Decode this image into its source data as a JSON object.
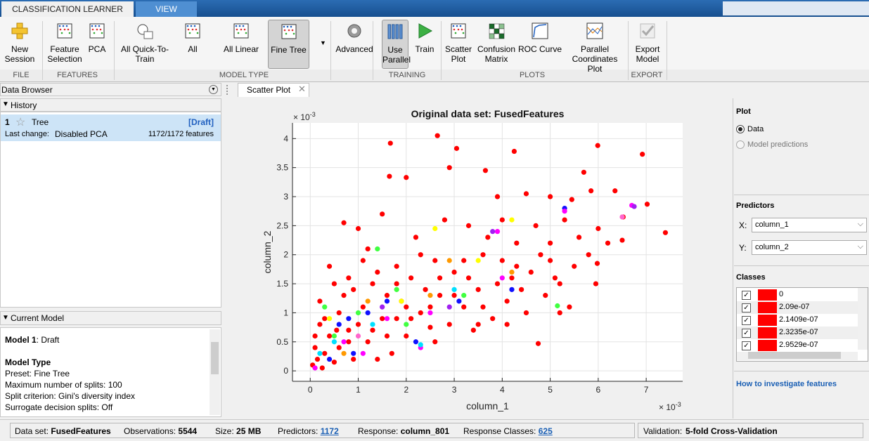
{
  "tabs": [
    "CLASSIFICATION LEARNER",
    "VIEW"
  ],
  "ribbon": {
    "buttons": [
      {
        "label": "New Session"
      },
      {
        "label": "Feature Selection"
      },
      {
        "label": "PCA"
      },
      {
        "label": "All Quick-To-Train"
      },
      {
        "label": "All"
      },
      {
        "label": "All Linear"
      },
      {
        "label": "Fine Tree",
        "selected": true
      },
      {
        "label": "Advanced"
      },
      {
        "label": "Use Parallel",
        "selected": true
      },
      {
        "label": "Train"
      },
      {
        "label": "Scatter Plot"
      },
      {
        "label": "Confusion Matrix"
      },
      {
        "label": "ROC Curve"
      },
      {
        "label": "Parallel Coordinates Plot"
      },
      {
        "label": "Export Model"
      }
    ],
    "groups": [
      "FILE",
      "FEATURES",
      "MODEL TYPE",
      "TRAINING",
      "PLOTS",
      "EXPORT"
    ]
  },
  "data_browser": {
    "title": "Data Browser",
    "history_title": "History",
    "history": [
      {
        "number": "1",
        "name": "Tree",
        "status": "[Draft]",
        "change_label": "Last change:",
        "change": "Disabled PCA",
        "features": "1172/1172 features"
      }
    ],
    "current_model_title": "Current Model",
    "current_model": {
      "model": "Model 1",
      "model_status": ": Draft",
      "section": "Model Type",
      "lines": [
        "Preset: Fine Tree",
        "Maximum number of splits: 100",
        "Split criterion: Gini's diversity index",
        "Surrogate decision splits: Off"
      ]
    }
  },
  "document_tab": "Scatter Plot",
  "chart_data": {
    "type": "scatter",
    "title": "Original data set: FusedFeatures",
    "x_label": "column_1",
    "y_label": "column_2",
    "x_multiplier": {
      "base": "× 10",
      "exponent": "-3"
    },
    "y_multiplier": {
      "base": "× 10",
      "exponent": "-3"
    },
    "xlim": [
      -0.37,
      7.76
    ],
    "ylim": [
      -0.18,
      4.27
    ],
    "xticks": [
      0,
      1,
      2,
      3,
      4,
      5,
      6,
      7
    ],
    "yticks": [
      0,
      0.5,
      1,
      1.5,
      2,
      2.5,
      3,
      3.5,
      4
    ],
    "grid": true,
    "series": [
      {
        "color": "#ff0000",
        "x": [
          2.65,
          1.67,
          3.05,
          4.25,
          5.99,
          6.92,
          2.9,
          3.65,
          1.65,
          2.0,
          5.7,
          5.85,
          7.4,
          7.02,
          6.35,
          6.52,
          5.45,
          4.5,
          5.0,
          3.9,
          1.5,
          0.7,
          1.0,
          6.0,
          6.5,
          5.95,
          5.98,
          4.75,
          2.5,
          3.4,
          1.2,
          2.2,
          2.8,
          3.3,
          4.0,
          4.7,
          5.3,
          5.6,
          6.2,
          5.0,
          4.3,
          3.6,
          2.6,
          1.8,
          0.4,
          0.5,
          0.8,
          1.3,
          2.1,
          3.0,
          4.0,
          4.6,
          5.5,
          5.2,
          4.4,
          3.5,
          2.7,
          1.9,
          1.1,
          0.6,
          0.2,
          0.1,
          0.05,
          0.3,
          0.8,
          1.5,
          2.3,
          3.2,
          4.1,
          4.9,
          5.4,
          3.8,
          2.9,
          2.0,
          1.2,
          0.6,
          0.9,
          1.7,
          0.2,
          0.4,
          1.0,
          1.6,
          2.4,
          3.3,
          4.2,
          5.0,
          5.8,
          3.7,
          2.3,
          1.4,
          0.7,
          0.15,
          0.5,
          1.4,
          4.1,
          3.0,
          2.1,
          0.9,
          1.8,
          2.5,
          3.6,
          4.5,
          5.1,
          4.8,
          3.2,
          2.0,
          0.3,
          1.1,
          0.1,
          2.7,
          3.9,
          4.3,
          0.8,
          1.3,
          1.8,
          2.6,
          3.5,
          5.2,
          0.25,
          0.55,
          1.6
        ],
        "values": [
          4.05,
          3.92,
          3.83,
          3.78,
          3.88,
          3.73,
          3.5,
          3.45,
          3.35,
          3.33,
          3.42,
          3.1,
          2.38,
          2.87,
          3.1,
          2.65,
          2.95,
          3.05,
          3.0,
          3.0,
          2.7,
          2.55,
          2.45,
          2.45,
          2.25,
          1.5,
          1.85,
          0.47,
          0.75,
          0.7,
          2.1,
          2.3,
          2.6,
          2.5,
          2.6,
          2.5,
          2.6,
          2.3,
          2.2,
          2.2,
          2.2,
          2.0,
          1.9,
          1.8,
          1.8,
          1.5,
          1.6,
          1.5,
          1.6,
          1.7,
          1.9,
          1.7,
          1.8,
          1.5,
          1.4,
          1.4,
          1.3,
          1.2,
          1.1,
          1.0,
          0.8,
          0.4,
          0.1,
          0.3,
          0.7,
          0.9,
          1.0,
          1.1,
          1.2,
          1.3,
          1.1,
          0.9,
          0.8,
          0.6,
          0.5,
          0.4,
          0.2,
          0.3,
          1.2,
          0.6,
          0.8,
          1.3,
          1.4,
          1.6,
          1.6,
          1.9,
          2.0,
          2.3,
          2.0,
          1.7,
          1.3,
          0.2,
          0.15,
          0.2,
          0.8,
          1.3,
          0.9,
          1.4,
          1.5,
          1.1,
          1.1,
          1.0,
          1.6,
          2.0,
          1.9,
          1.1,
          0.9,
          1.9,
          0.6,
          1.6,
          1.5,
          1.8,
          0.5,
          0.7,
          0.9,
          0.5,
          0.8,
          1.0,
          0.05,
          0.7,
          0.6
        ]
      },
      {
        "color": "#1010ff",
        "x": [
          0.4,
          0.8,
          1.2,
          2.2,
          3.1,
          1.6,
          0.6,
          5.3,
          0.9,
          4.2
        ],
        "values": [
          0.2,
          0.9,
          1.0,
          0.5,
          1.2,
          1.2,
          0.8,
          2.8,
          0.3,
          1.4
        ]
      },
      {
        "color": "#40ff40",
        "x": [
          1.4,
          1.0,
          0.5,
          2.0,
          3.2,
          0.3,
          5.15,
          1.8
        ],
        "values": [
          2.1,
          1.0,
          0.6,
          0.8,
          1.3,
          1.1,
          1.12,
          1.4
        ]
      },
      {
        "color": "#ff00ff",
        "x": [
          0.1,
          0.7,
          1.6,
          2.5,
          4.0,
          6.7,
          3.9,
          5.3,
          1.1,
          2.3
        ],
        "values": [
          0.05,
          0.5,
          0.9,
          1.0,
          1.6,
          2.85,
          2.4,
          2.75,
          0.3,
          0.4
        ]
      },
      {
        "color": "#a020f0",
        "x": [
          6.75,
          3.8,
          1.5,
          2.9
        ],
        "values": [
          2.83,
          2.4,
          1.1,
          1.1
        ]
      },
      {
        "color": "#ffff00",
        "x": [
          3.5,
          4.2,
          0.4,
          2.6,
          1.9
        ],
        "values": [
          1.9,
          2.6,
          0.9,
          2.45,
          1.2
        ]
      },
      {
        "color": "#00e0ff",
        "x": [
          0.5,
          2.3,
          3.0,
          0.2,
          1.3
        ],
        "values": [
          0.5,
          0.45,
          1.4,
          0.3,
          0.8
        ]
      },
      {
        "color": "#ff9900",
        "x": [
          1.2,
          2.5,
          0.7,
          4.2,
          2.9
        ],
        "values": [
          1.2,
          1.3,
          0.3,
          1.7,
          1.9
        ]
      },
      {
        "color": "#ff66cc",
        "x": [
          6.5,
          1.0
        ],
        "values": [
          2.65,
          0.6
        ]
      }
    ]
  },
  "side_panel": {
    "plot_title": "Plot",
    "plot_options": [
      "Data",
      "Model predictions"
    ],
    "predictors_title": "Predictors",
    "x_label": "X:",
    "x_value": "column_1",
    "y_label": "Y:",
    "y_value": "column_2",
    "classes_title": "Classes",
    "classes": [
      {
        "label": "0",
        "color": "#ff0000"
      },
      {
        "label": "2.09e-07",
        "color": "#ff0000"
      },
      {
        "label": "2.1409e-07",
        "color": "#ff0000"
      },
      {
        "label": "2.3235e-07",
        "color": "#ff0000"
      },
      {
        "label": "2.9529e-07",
        "color": "#ff0000"
      }
    ],
    "help_link": "How to investigate features"
  },
  "status_bar": [
    {
      "label": "Data set:",
      "value": "FusedFeatures"
    },
    {
      "label": "Observations:",
      "value": "5544"
    },
    {
      "label": "Size:",
      "value": "25 MB"
    },
    {
      "label": "Predictors:",
      "value": "1172",
      "link": true
    },
    {
      "label": "Response:",
      "value": "column_801"
    },
    {
      "label": "Response Classes:",
      "value": "625",
      "link": true
    }
  ],
  "validation": {
    "label": "Validation:",
    "value": "5-fold Cross-Validation"
  }
}
